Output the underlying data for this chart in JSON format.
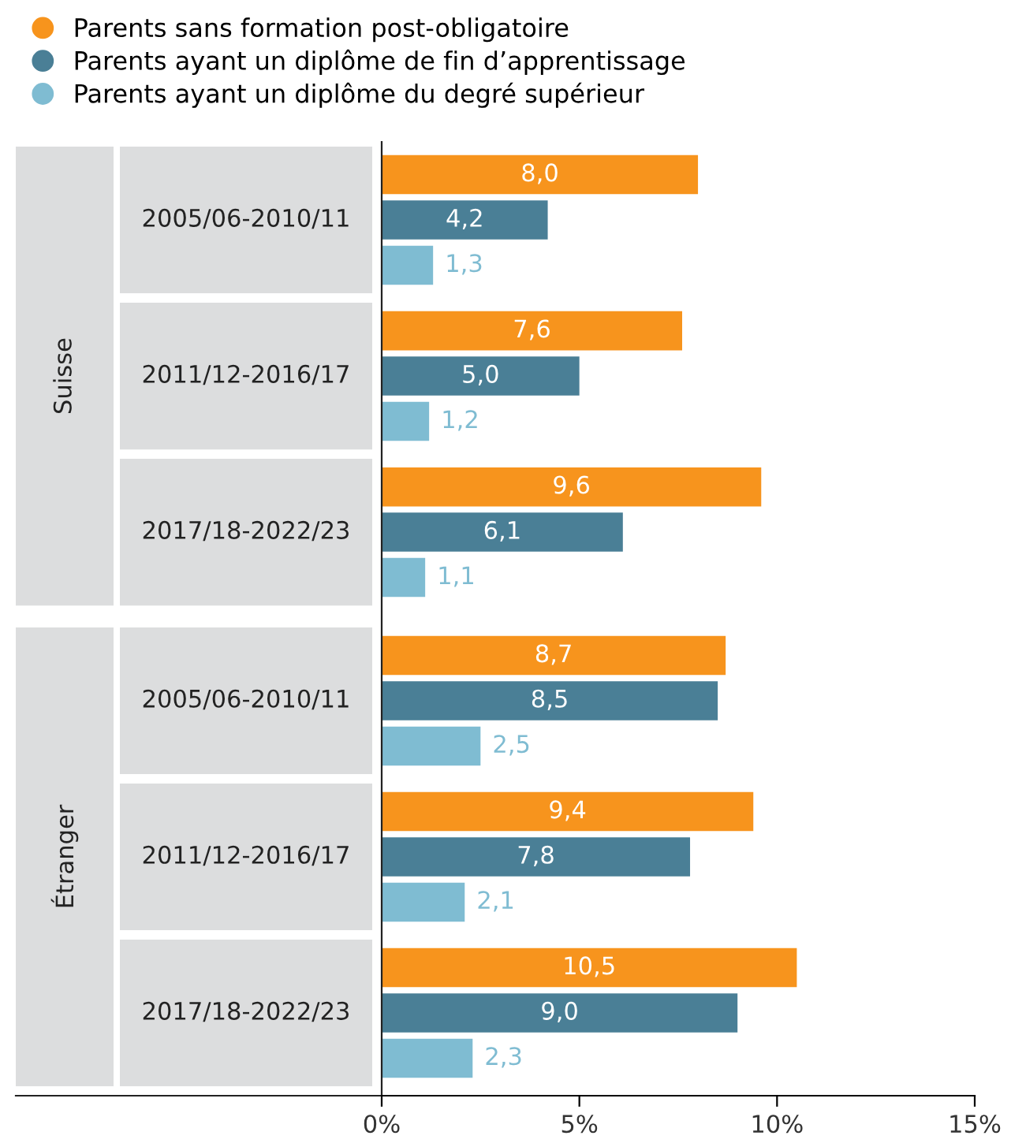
{
  "chart_data": {
    "type": "bar",
    "orientation": "horizontal",
    "categories": [
      "2005/06-2010/11",
      "2011/12-2016/17",
      "2017/18-2022/23",
      "2005/06-2010/11",
      "2011/12-2016/17",
      "2017/18-2022/23"
    ],
    "series": [
      {
        "name": "Parents sans formation post-obligatoire",
        "color": "#f7941d",
        "values": [
          8.0,
          7.6,
          9.6,
          8.7,
          9.4,
          10.5
        ],
        "value_labels": [
          "8,0",
          "7,6",
          "9,6",
          "8,7",
          "9,4",
          "10,5"
        ]
      },
      {
        "name": "Parents ayant un diplôme de fin d’apprentissage",
        "color": "#4a7f96",
        "values": [
          4.2,
          5.0,
          6.1,
          8.5,
          7.8,
          9.0
        ],
        "value_labels": [
          "4,2",
          "5,0",
          "6,1",
          "8,5",
          "7,8",
          "9,0"
        ]
      },
      {
        "name": "Parents ayant un diplôme du degré supérieur",
        "color": "#7fbcd2",
        "values": [
          1.3,
          1.2,
          1.1,
          2.5,
          2.1,
          2.3
        ],
        "value_labels": [
          "1,3",
          "1,2",
          "1,1",
          "2,5",
          "2,1",
          "2,3"
        ]
      }
    ],
    "annotations": [
      "Suisse",
      "Étranger"
    ],
    "xlim": [
      0,
      15
    ],
    "xticks": [
      {
        "value": 0,
        "label": "0%"
      },
      {
        "value": 5,
        "label": "5%"
      },
      {
        "value": 10,
        "label": "10%"
      },
      {
        "value": 15,
        "label": "15%"
      }
    ],
    "legend": "top left",
    "grid": false
  }
}
